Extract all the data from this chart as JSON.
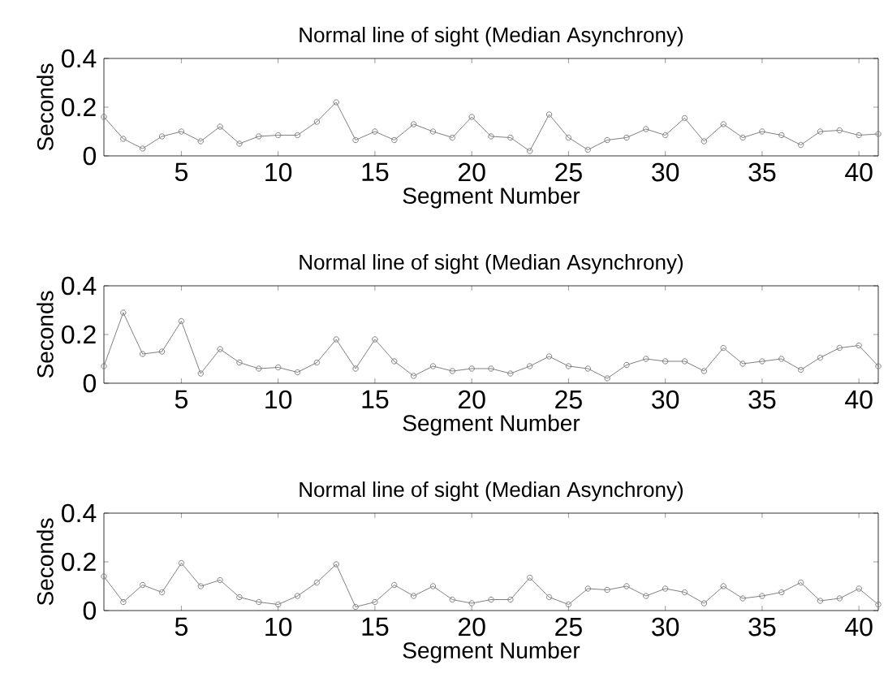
{
  "chart_data": [
    {
      "type": "line",
      "title": "Normal line of sight (Median Asynchrony)",
      "xlabel": "Segment Number",
      "ylabel": "Seconds",
      "color": "#808080",
      "marker": "circle",
      "x": [
        1,
        2,
        3,
        4,
        5,
        6,
        7,
        8,
        9,
        10,
        11,
        12,
        13,
        14,
        15,
        16,
        17,
        18,
        19,
        20,
        21,
        22,
        23,
        24,
        25,
        26,
        27,
        28,
        29,
        30,
        31,
        32,
        33,
        34,
        35,
        36,
        37,
        38,
        39,
        40,
        41
      ],
      "values": [
        0.16,
        0.07,
        0.03,
        0.08,
        0.1,
        0.06,
        0.12,
        0.05,
        0.08,
        0.085,
        0.085,
        0.14,
        0.22,
        0.065,
        0.1,
        0.065,
        0.13,
        0.1,
        0.075,
        0.16,
        0.08,
        0.075,
        0.02,
        0.17,
        0.075,
        0.025,
        0.065,
        0.075,
        0.11,
        0.085,
        0.155,
        0.06,
        0.13,
        0.075,
        0.1,
        0.085,
        0.045,
        0.1,
        0.105,
        0.085,
        0.09
      ],
      "xlim": [
        1,
        41
      ],
      "xticks": [
        5,
        10,
        15,
        20,
        25,
        30,
        35,
        40
      ],
      "ylim": [
        0,
        0.4
      ],
      "yticks": [
        0,
        0.2,
        0.4
      ]
    },
    {
      "type": "line",
      "title": "Normal line of sight (Median Asynchrony)",
      "xlabel": "Segment Number",
      "ylabel": "Seconds",
      "color": "#808080",
      "marker": "circle",
      "x": [
        1,
        2,
        3,
        4,
        5,
        6,
        7,
        8,
        9,
        10,
        11,
        12,
        13,
        14,
        15,
        16,
        17,
        18,
        19,
        20,
        21,
        22,
        23,
        24,
        25,
        26,
        27,
        28,
        29,
        30,
        31,
        32,
        33,
        34,
        35,
        36,
        37,
        38,
        39,
        40,
        41
      ],
      "values": [
        0.07,
        0.29,
        0.12,
        0.13,
        0.255,
        0.04,
        0.14,
        0.085,
        0.06,
        0.065,
        0.045,
        0.085,
        0.18,
        0.06,
        0.18,
        0.09,
        0.03,
        0.07,
        0.05,
        0.06,
        0.06,
        0.04,
        0.07,
        0.11,
        0.07,
        0.06,
        0.02,
        0.075,
        0.1,
        0.09,
        0.09,
        0.05,
        0.145,
        0.08,
        0.09,
        0.1,
        0.055,
        0.105,
        0.145,
        0.155,
        0.07
      ],
      "xlim": [
        1,
        41
      ],
      "xticks": [
        5,
        10,
        15,
        20,
        25,
        30,
        35,
        40
      ],
      "ylim": [
        0,
        0.4
      ],
      "yticks": [
        0,
        0.2,
        0.4
      ]
    },
    {
      "type": "line",
      "title": "Normal line of sight (Median Asynchrony)",
      "xlabel": "Segment Number",
      "ylabel": "Seconds",
      "color": "#808080",
      "marker": "circle",
      "x": [
        1,
        2,
        3,
        4,
        5,
        6,
        7,
        8,
        9,
        10,
        11,
        12,
        13,
        14,
        15,
        16,
        17,
        18,
        19,
        20,
        21,
        22,
        23,
        24,
        25,
        26,
        27,
        28,
        29,
        30,
        31,
        32,
        33,
        34,
        35,
        36,
        37,
        38,
        39,
        40,
        41
      ],
      "values": [
        0.14,
        0.035,
        0.105,
        0.075,
        0.195,
        0.1,
        0.125,
        0.055,
        0.035,
        0.025,
        0.06,
        0.115,
        0.19,
        0.015,
        0.035,
        0.105,
        0.06,
        0.1,
        0.045,
        0.03,
        0.045,
        0.045,
        0.135,
        0.055,
        0.025,
        0.09,
        0.085,
        0.1,
        0.06,
        0.09,
        0.075,
        0.03,
        0.1,
        0.05,
        0.06,
        0.075,
        0.115,
        0.04,
        0.05,
        0.09,
        0.025
      ],
      "xlim": [
        1,
        41
      ],
      "xticks": [
        5,
        10,
        15,
        20,
        25,
        30,
        35,
        40
      ],
      "ylim": [
        0,
        0.4
      ],
      "yticks": [
        0,
        0.2,
        0.4
      ]
    }
  ]
}
